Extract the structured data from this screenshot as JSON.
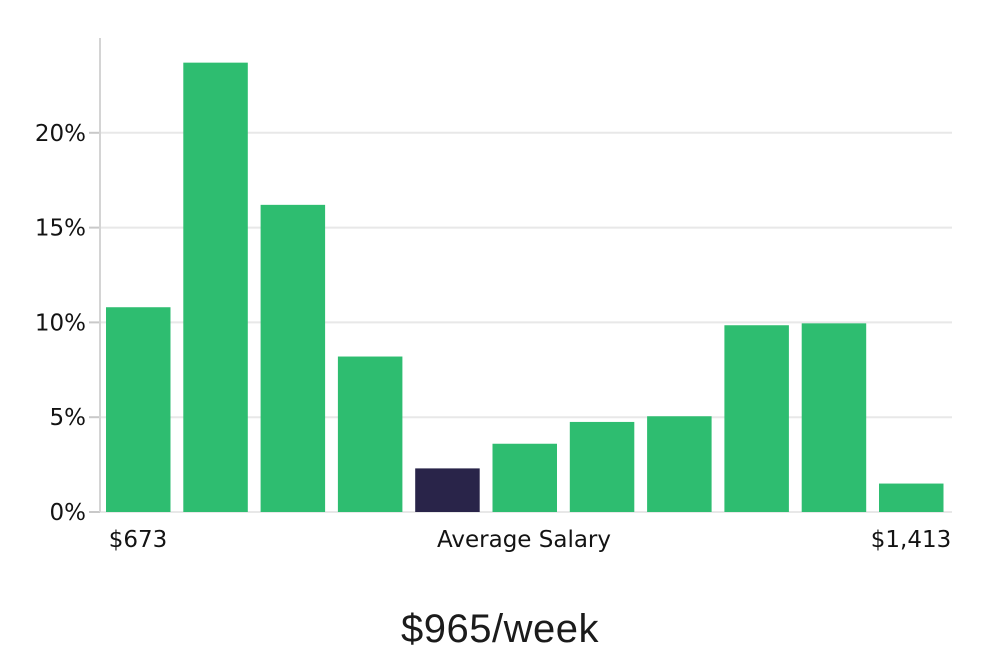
{
  "chart_data": {
    "type": "bar",
    "title": "$965/week",
    "x_axis_labels": {
      "left": "$673",
      "center": "Average Salary",
      "right": "$1,413"
    },
    "y_tick_values": [
      0,
      5,
      10,
      15,
      20
    ],
    "y_tick_labels": [
      "0%",
      "5%",
      "10%",
      "15%",
      "20%"
    ],
    "ylim": [
      0,
      25
    ],
    "values": [
      10.8,
      23.7,
      16.2,
      8.2,
      2.3,
      3.6,
      4.75,
      5.05,
      9.85,
      9.95,
      1.5
    ],
    "highlight_index": 4,
    "grid": true,
    "legend": false,
    "colors": {
      "bar": "#2ebd70",
      "highlight_bar": "#292449",
      "gridline": "#e8e8e8",
      "axis": "#d4d4d4",
      "tick": "#c9c9c9",
      "label": "#131313"
    }
  }
}
